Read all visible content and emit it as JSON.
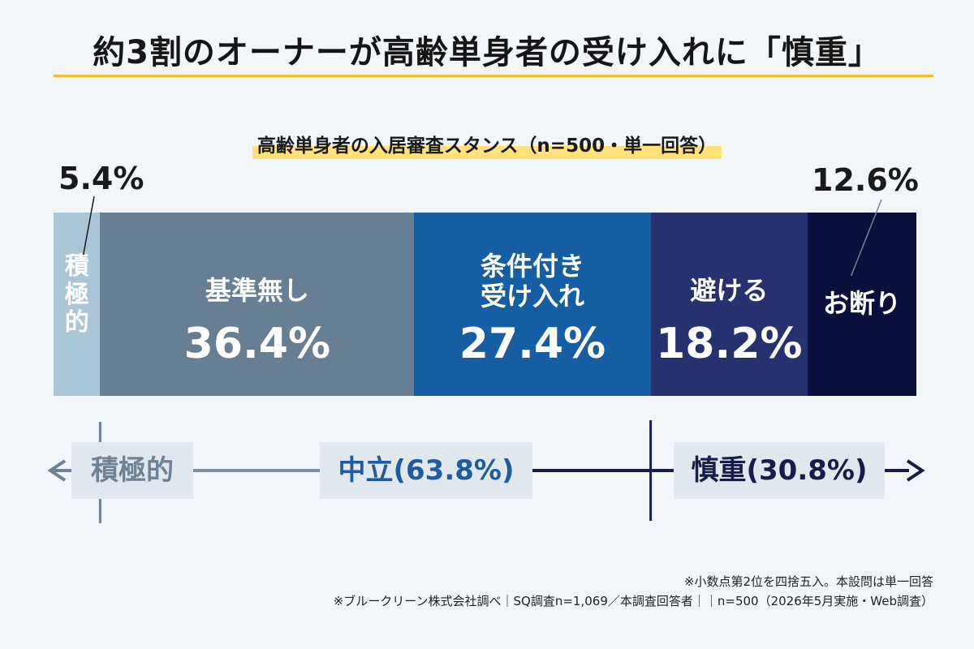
{
  "title": "約3割のオーナーが高齢単身者の受け入れに「慎重」",
  "subtitle": "高齢単身者の入居審査スタンス（n=500・単一回答）",
  "chart_data": {
    "type": "bar",
    "orientation": "horizontal-stacked-100",
    "title": "高齢単身者の入居審査スタンス（n=500・単一回答）",
    "categories": [
      "積極的",
      "基準無し",
      "条件付き受け入れ",
      "避ける",
      "お断り"
    ],
    "values": [
      5.4,
      36.4,
      27.4,
      18.2,
      12.6
    ],
    "value_labels": [
      "5.4%",
      "36.4%",
      "27.4%",
      "18.2%",
      "12.6%"
    ],
    "segment_labels": [
      "積極的",
      "基準無し",
      "条件付き\n受け入れ",
      "避ける",
      "お断り"
    ],
    "colors": [
      "#a9c7d8",
      "#677f94",
      "#165ea3",
      "#25326f",
      "#0b0f3b"
    ],
    "xlim": [
      0,
      100
    ],
    "unit": "%"
  },
  "axis": {
    "left_label": "積極的",
    "middle_label": "中立(63.8%)",
    "right_label": "慎重(30.8%)",
    "left_color": "#6d8296",
    "middle_color": "#1f5c9e",
    "right_color": "#171c4a"
  },
  "footnotes": [
    "※小数点第2位を四捨五入。本設問は単一回答",
    "※ブルークリーン株式会社調べ｜SQ調査n=1,069／本調査回答者｜｜n=500（2026年5月実施・Web調査）"
  ]
}
